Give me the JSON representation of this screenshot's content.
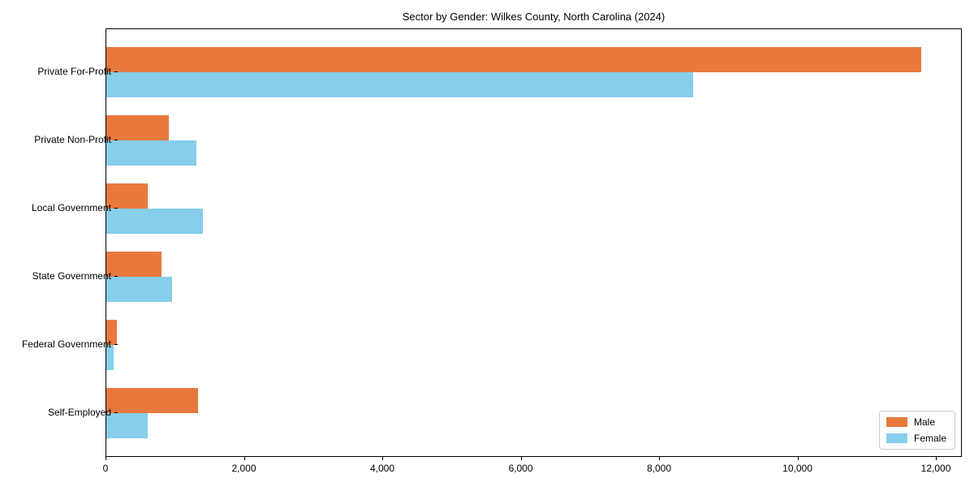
{
  "title": "Sector by Gender: Wilkes County, North Carolina (2024)",
  "legend": {
    "position": "lower right",
    "items": [
      {
        "label": "Male",
        "color": "#E8793D"
      },
      {
        "label": "Female",
        "color": "#87CEEB"
      }
    ]
  },
  "chart_data": {
    "type": "bar",
    "orientation": "horizontal",
    "title": "Sector by Gender: Wilkes County, North Carolina (2024)",
    "xlabel": "",
    "ylabel": "",
    "grid": false,
    "legend_position": "lower right",
    "categories": [
      "Private For-Profit",
      "Private Non-Profit",
      "Local Government",
      "State Government",
      "Federal Government",
      "Self-Employed"
    ],
    "series": [
      {
        "name": "Male",
        "color": "#E8793D",
        "values": [
          11800,
          900,
          600,
          800,
          150,
          1330
        ]
      },
      {
        "name": "Female",
        "color": "#87CEEB",
        "values": [
          8500,
          1300,
          1400,
          950,
          100,
          600
        ]
      }
    ],
    "x_ticks": [
      "0",
      "2,000",
      "4,000",
      "6,000",
      "8,000",
      "10,000",
      "12,000"
    ],
    "x_tick_values": [
      0,
      2000,
      4000,
      6000,
      8000,
      10000,
      12000
    ],
    "xlim": [
      0,
      12375
    ]
  }
}
